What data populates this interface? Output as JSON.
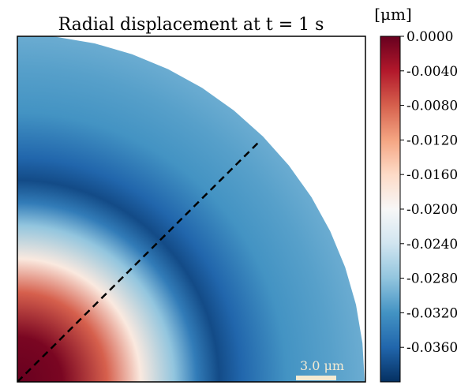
{
  "chart_data": {
    "type": "heatmap",
    "title": "Radial displacement at t = 1 s",
    "colorbar": {
      "unit": "[μm]",
      "range": [
        -0.04,
        0.0
      ],
      "ticks": [
        "0.0000",
        "-0.0040",
        "-0.0080",
        "-0.0120",
        "-0.0160",
        "-0.0200",
        "-0.0240",
        "-0.0280",
        "-0.0320",
        "-0.0360"
      ],
      "tick_values": [
        0.0,
        -0.004,
        -0.008,
        -0.012,
        -0.016,
        -0.02,
        -0.024,
        -0.028,
        -0.032,
        -0.036
      ],
      "colormap": "RdBu (reversed)"
    },
    "field": {
      "geometry": "quarter disk, origin at bottom-left corner",
      "radial_profile_um": [
        {
          "r": 0.0,
          "value": 0.0
        },
        {
          "r": 2.0,
          "value": -0.001
        },
        {
          "r": 4.0,
          "value": -0.008
        },
        {
          "r": 5.5,
          "value": -0.018
        },
        {
          "r": 7.0,
          "value": -0.028
        },
        {
          "r": 8.0,
          "value": -0.034
        },
        {
          "r": 9.0,
          "value": -0.038
        },
        {
          "r": 10.0,
          "value": -0.036
        },
        {
          "r": 12.0,
          "value": -0.032
        },
        {
          "r": 14.0,
          "value": -0.031
        },
        {
          "r": 15.5,
          "value": -0.03
        }
      ],
      "outer_radius_um": 15.5
    },
    "annotation": "dashed line along 45° from origin",
    "scalebar": {
      "label": "3.0 μm",
      "length_um": 3.0
    },
    "colors": {
      "frame": "#000000",
      "scalebar": "#f3ead2",
      "dashed_line": "#000000"
    }
  }
}
